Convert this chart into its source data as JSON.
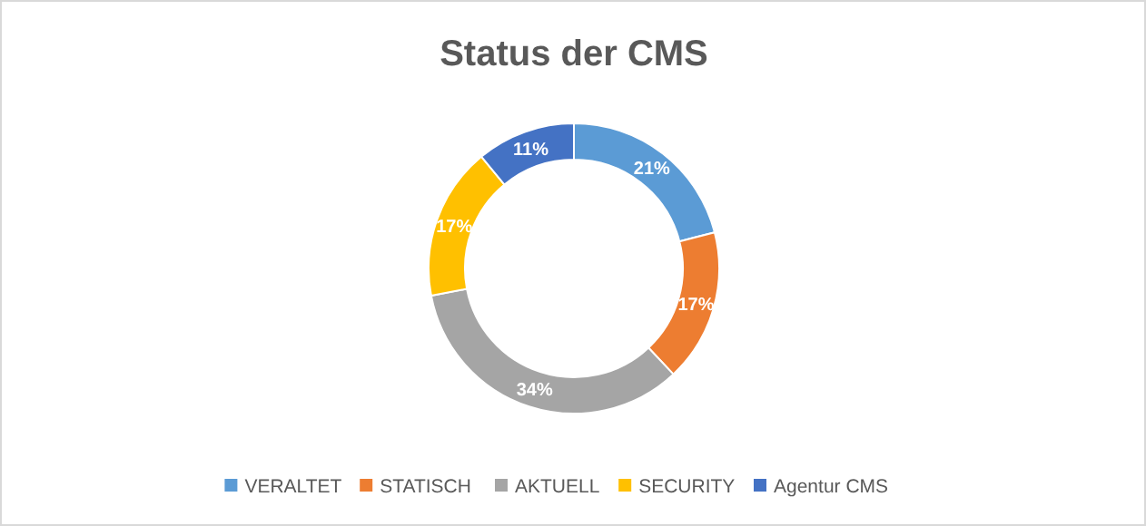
{
  "chart_data": {
    "type": "donut",
    "title": "Status der CMS",
    "categories": [
      "VERALTET",
      "STATISCH",
      "AKTUELL",
      "SECURITY",
      "Agentur CMS"
    ],
    "values": [
      21,
      17,
      34,
      17,
      11
    ],
    "colors": [
      "#5b9bd5",
      "#ed7d31",
      "#a5a5a5",
      "#ffc000",
      "#4472c4"
    ],
    "value_labels": [
      "21%",
      "17%",
      "34%",
      "17%",
      "11%"
    ],
    "legend": "bottom"
  }
}
